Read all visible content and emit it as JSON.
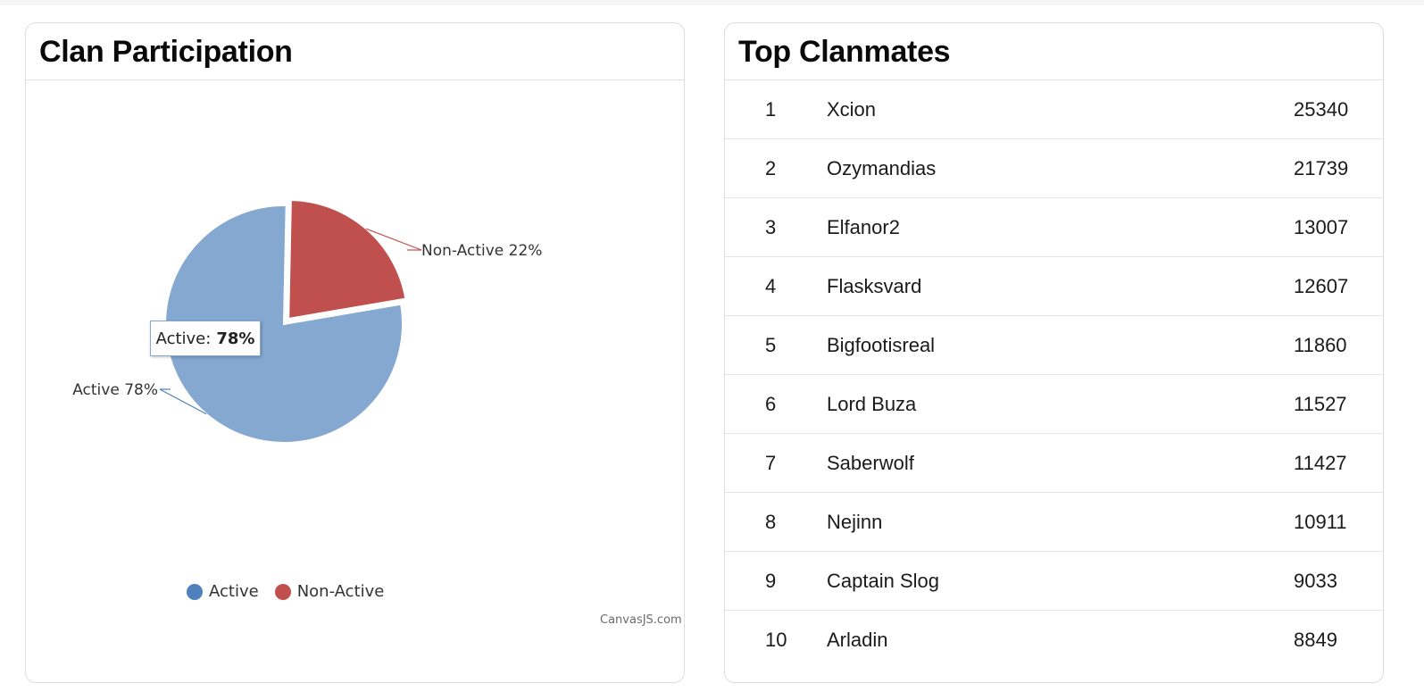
{
  "participation": {
    "title": "Clan Participation",
    "tooltip": {
      "label": "Active:",
      "value": "78%"
    },
    "credit": "CanvasJS.com",
    "chart_data": {
      "type": "pie",
      "categories": [
        "Active",
        "Non-Active"
      ],
      "values": [
        78,
        22
      ],
      "slice_labels": [
        "Active 78%",
        "Non-Active 22%"
      ],
      "colors": [
        "#85a8d0",
        "#c0504e"
      ],
      "legend_position": "bottom",
      "exploded": "Non-Active"
    },
    "legend": [
      {
        "label": "Active",
        "color": "#4f81bd"
      },
      {
        "label": "Non-Active",
        "color": "#c0504e"
      }
    ]
  },
  "clanmates": {
    "title": "Top Clanmates",
    "rows": [
      {
        "rank": "1",
        "name": "Xcion",
        "score": "25340"
      },
      {
        "rank": "2",
        "name": "Ozymandias",
        "score": "21739"
      },
      {
        "rank": "3",
        "name": "Elfanor2",
        "score": "13007"
      },
      {
        "rank": "4",
        "name": "Flasksvard",
        "score": "12607"
      },
      {
        "rank": "5",
        "name": "Bigfootisreal",
        "score": "11860"
      },
      {
        "rank": "6",
        "name": "Lord Buza",
        "score": "11527"
      },
      {
        "rank": "7",
        "name": "Saberwolf",
        "score": "11427"
      },
      {
        "rank": "8",
        "name": "Nejinn",
        "score": "10911"
      },
      {
        "rank": "9",
        "name": "Captain Slog",
        "score": "9033"
      },
      {
        "rank": "10",
        "name": "Arladin",
        "score": "8849"
      }
    ]
  }
}
